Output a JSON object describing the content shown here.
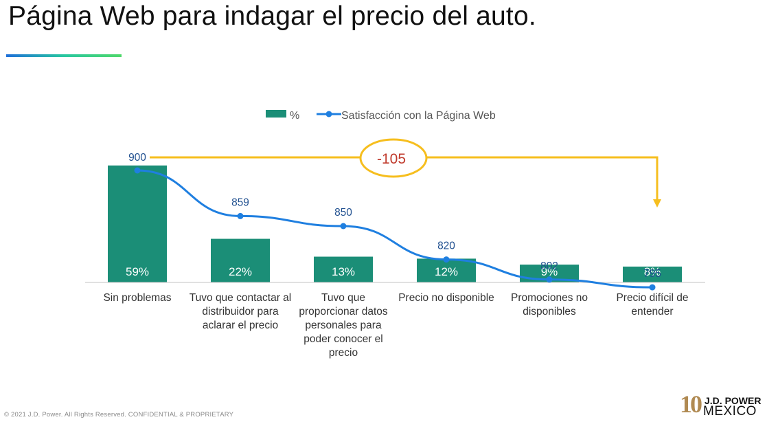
{
  "page": {
    "title": "Página Web para indagar el precio del auto.",
    "footer": "© 2021 J.D. Power. All Rights Reserved. CONFIDENTIAL & PROPRIETARY"
  },
  "logo": {
    "number": "10",
    "brand": "J.D. POWER",
    "country": "MEXICO"
  },
  "colors": {
    "bar": "#1b8e77",
    "line": "#1f7fe0",
    "line_label": "#1f4f8f",
    "highlight": "#f6be1e",
    "delta": "#c0392b",
    "accent_bar": "#1e6fd9"
  },
  "chart_data": {
    "type": "bar",
    "categories": [
      "Sin problemas",
      "Tuvo que contactar al distribuidor para aclarar el precio",
      "Tuvo que proporcionar datos personales para poder conocer el precio",
      "Precio no disponible",
      "Promociones no disponibles",
      "Precio difícil de entender"
    ],
    "series": [
      {
        "name": "%",
        "type": "bar",
        "values": [
          59,
          22,
          13,
          12,
          9,
          8
        ],
        "labels": [
          "59%",
          "22%",
          "13%",
          "12%",
          "9%",
          "8%"
        ]
      },
      {
        "name": "Satisfacción con la Página Web",
        "type": "line",
        "values": [
          900,
          859,
          850,
          820,
          802,
          795
        ],
        "labels": [
          "900",
          "859",
          "850",
          "820",
          "802",
          "795"
        ]
      }
    ],
    "annotation": {
      "text": "-105",
      "from": "Sin problemas",
      "to": "Precio difícil de entender"
    },
    "legend": "top-center",
    "grid": false
  }
}
